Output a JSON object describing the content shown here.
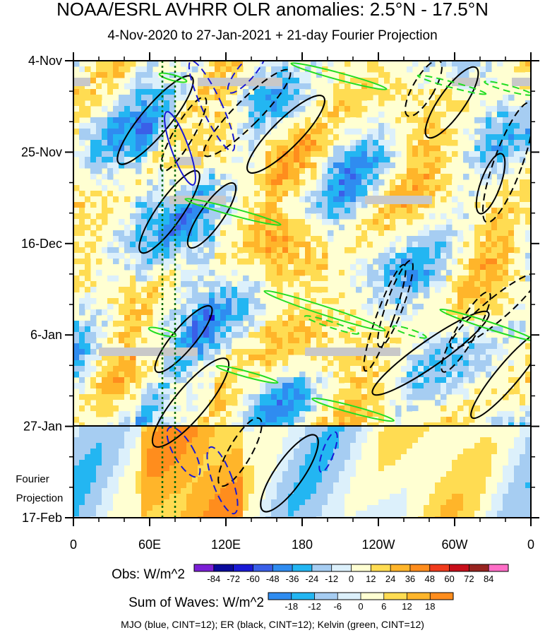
{
  "title": "NOAA/ESRL AVHRR OLR anomalies: 2.5°N - 17.5°N",
  "subtitle": "4-Nov-2020 to 27-Jan-2021 + 21-day Fourier Projection",
  "footer": "MJO (blue, CINT=12); ER (black, CINT=12); Kelvin (green, CINT=12)",
  "chart_data": {
    "type": "heatmap",
    "x_ticks": [
      "0",
      "60E",
      "120E",
      "180",
      "120W",
      "60W",
      "0"
    ],
    "y_ticks": [
      "4-Nov",
      "25-Nov",
      "16-Dec",
      "6-Jan",
      "27-Jan",
      "17-Feb"
    ],
    "projection_label": "Fourier\nProjection",
    "projection_label_lines": [
      "Fourier",
      "Projection"
    ],
    "x_range": [
      "0",
      "0"
    ],
    "y_range": [
      "4-Nov-2020",
      "17-Feb-2021"
    ],
    "obs_end": "27-Jan",
    "reference_lines_lon": [
      70,
      80
    ],
    "obs_colorbar": {
      "label": "Obs: W/m^2",
      "ticks": [
        "-84",
        "-72",
        "-60",
        "-48",
        "-36",
        "-24",
        "-12",
        "0",
        "12",
        "24",
        "36",
        "48",
        "60",
        "72",
        "84"
      ],
      "colors": [
        "#7b1fd6",
        "#0a0a9c",
        "#1a1ad6",
        "#3a5fe8",
        "#2f8cf0",
        "#23b6f2",
        "#a6cdf2",
        "#dcf0fb",
        "#ffffd2",
        "#ffdc52",
        "#ffb52a",
        "#ff8d1d",
        "#f03b1d",
        "#c70e1a",
        "#97231f",
        "#ff6ec7"
      ]
    },
    "waves_colorbar": {
      "label": "Sum of Waves: W/m^2",
      "ticks": [
        "-18",
        "-12",
        "-6",
        "0",
        "6",
        "12",
        "18"
      ],
      "colors": [
        "#2f8cf0",
        "#23b6f2",
        "#a6cdf2",
        "#dcf0fb",
        "#ffffd2",
        "#ffdc52",
        "#ffb52a",
        "#ff8d1d"
      ]
    },
    "wave_filters": [
      {
        "name": "MJO",
        "color": "#1a1ad6",
        "cint": 12
      },
      {
        "name": "ER",
        "color": "#000000",
        "cint": 12
      },
      {
        "name": "Kelvin",
        "color": "#22dd22",
        "cint": 12
      }
    ]
  }
}
